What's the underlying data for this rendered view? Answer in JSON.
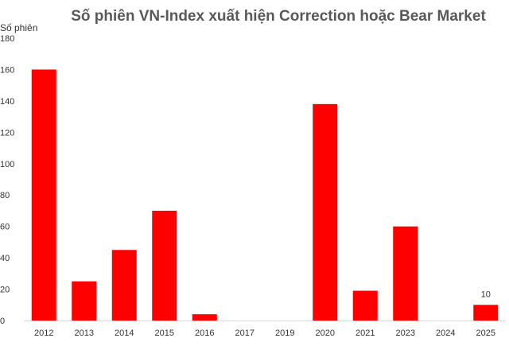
{
  "chart_data": {
    "type": "bar",
    "title": "Số phiên VN-Index xuất hiện Correction hoặc Bear Market",
    "ylabel": "Số phiên",
    "xlabel": "",
    "categories": [
      "2012",
      "2013",
      "2014",
      "2015",
      "2016",
      "2017",
      "2019",
      "2020",
      "2021",
      "2023",
      "2024",
      "2025"
    ],
    "values": [
      160,
      25,
      45,
      70,
      4,
      0,
      0,
      138,
      19,
      60,
      0,
      10
    ],
    "ylim": [
      0,
      180
    ],
    "yticks": [
      "0",
      "20",
      "40",
      "60",
      "80",
      "100",
      "120",
      "140",
      "160",
      "180"
    ],
    "data_labels": [
      {
        "category": "2025",
        "text": "10"
      }
    ],
    "bar_color": "#ff0000",
    "grid": false,
    "legend": "none"
  }
}
